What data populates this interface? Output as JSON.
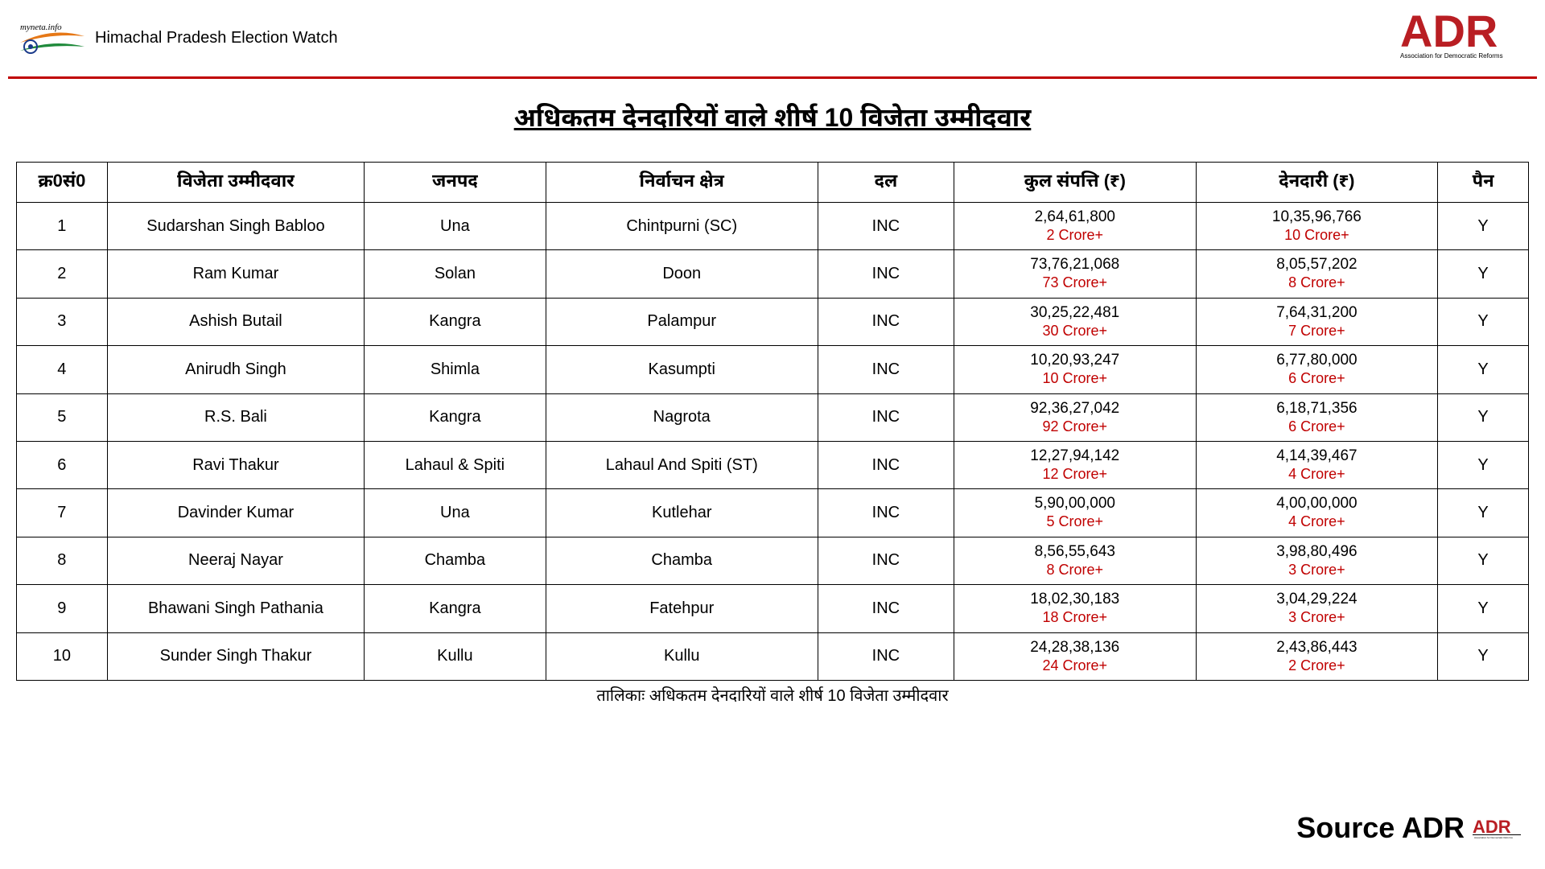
{
  "header": {
    "left_text": "Himachal Pradesh Election Watch",
    "myneta_label": "myneta.info",
    "adr_text_top": "ADR",
    "adr_text_bottom": "Association for Democratic Reforms"
  },
  "title": "अधिकतम देनदारियों वाले शीर्ष 10 विजेता उम्मीदवार",
  "caption": "तालिकाः अधिकतम देनदारियों वाले शीर्ष 10 विजेता उम्मीदवार",
  "source": {
    "text": "Source ADR"
  },
  "colors": {
    "red_line": "#c00000",
    "crore_text": "#c00000",
    "border": "#000000",
    "adr_red": "#b91e23",
    "logo_orange": "#e67817",
    "logo_green": "#1f8a3b"
  },
  "table": {
    "headers": {
      "sn": "क्र0सं0",
      "name": "विजेता उम्मीदवार",
      "district": "जनपद",
      "constituency": "निर्वाचन क्षेत्र",
      "party": "दल",
      "assets": "कुल संपत्ति (₹)",
      "liabilities": "देनदारी (₹)",
      "pan": "पैन"
    },
    "rows": [
      {
        "sn": "1",
        "name": "Sudarshan Singh Babloo",
        "district": "Una",
        "constituency": "Chintpurni (SC)",
        "party": "INC",
        "assets_main": "2,64,61,800",
        "assets_sub": "2 Crore+",
        "liab_main": "10,35,96,766",
        "liab_sub": "10 Crore+",
        "pan": "Y"
      },
      {
        "sn": "2",
        "name": "Ram Kumar",
        "district": "Solan",
        "constituency": "Doon",
        "party": "INC",
        "assets_main": "73,76,21,068",
        "assets_sub": "73 Crore+",
        "liab_main": "8,05,57,202",
        "liab_sub": "8 Crore+",
        "pan": "Y"
      },
      {
        "sn": "3",
        "name": "Ashish Butail",
        "district": "Kangra",
        "constituency": "Palampur",
        "party": "INC",
        "assets_main": "30,25,22,481",
        "assets_sub": "30 Crore+",
        "liab_main": "7,64,31,200",
        "liab_sub": "7 Crore+",
        "pan": "Y"
      },
      {
        "sn": "4",
        "name": "Anirudh Singh",
        "district": "Shimla",
        "constituency": "Kasumpti",
        "party": "INC",
        "assets_main": "10,20,93,247",
        "assets_sub": "10 Crore+",
        "liab_main": "6,77,80,000",
        "liab_sub": "6 Crore+",
        "pan": "Y"
      },
      {
        "sn": "5",
        "name": "R.S. Bali",
        "district": "Kangra",
        "constituency": "Nagrota",
        "party": "INC",
        "assets_main": "92,36,27,042",
        "assets_sub": "92 Crore+",
        "liab_main": "6,18,71,356",
        "liab_sub": "6 Crore+",
        "pan": "Y"
      },
      {
        "sn": "6",
        "name": "Ravi Thakur",
        "district": "Lahaul & Spiti",
        "constituency": "Lahaul And Spiti (ST)",
        "party": "INC",
        "assets_main": "12,27,94,142",
        "assets_sub": "12 Crore+",
        "liab_main": "4,14,39,467",
        "liab_sub": "4 Crore+",
        "pan": "Y"
      },
      {
        "sn": "7",
        "name": "Davinder Kumar",
        "district": "Una",
        "constituency": "Kutlehar",
        "party": "INC",
        "assets_main": "5,90,00,000",
        "assets_sub": "5 Crore+",
        "liab_main": "4,00,00,000",
        "liab_sub": "4 Crore+",
        "pan": "Y"
      },
      {
        "sn": "8",
        "name": "Neeraj Nayar",
        "district": "Chamba",
        "constituency": "Chamba",
        "party": "INC",
        "assets_main": "8,56,55,643",
        "assets_sub": "8 Crore+",
        "liab_main": "3,98,80,496",
        "liab_sub": "3 Crore+",
        "pan": "Y"
      },
      {
        "sn": "9",
        "name": "Bhawani Singh Pathania",
        "district": "Kangra",
        "constituency": "Fatehpur",
        "party": "INC",
        "assets_main": "18,02,30,183",
        "assets_sub": "18 Crore+",
        "liab_main": "3,04,29,224",
        "liab_sub": "3 Crore+",
        "pan": "Y"
      },
      {
        "sn": "10",
        "name": "Sunder Singh Thakur",
        "district": "Kullu",
        "constituency": "Kullu",
        "party": "INC",
        "assets_main": "24,28,38,136",
        "assets_sub": "24 Crore+",
        "liab_main": "2,43,86,443",
        "liab_sub": "2 Crore+",
        "pan": "Y"
      }
    ]
  }
}
